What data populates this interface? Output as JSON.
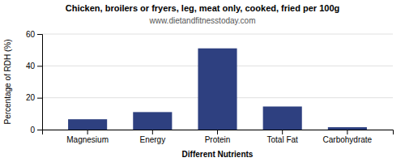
{
  "chart_data": {
    "type": "bar",
    "title": "Chicken, broilers or fryers, leg, meat only, cooked, fried per 100g",
    "subtitle": "www.dietandfitnesstoday.com",
    "categories": [
      "Magnesium",
      "Energy",
      "Protein",
      "Total Fat",
      "Carbohydrate"
    ],
    "values": [
      6.5,
      11.0,
      51.0,
      14.5,
      1.5
    ],
    "color": "#2e4080",
    "xlabel": "Different Nutrients",
    "ylabel": "Percentage of RDH (%)",
    "ylim": [
      0,
      60
    ],
    "yticks": [
      0,
      20,
      40,
      60
    ],
    "grid": true
  }
}
